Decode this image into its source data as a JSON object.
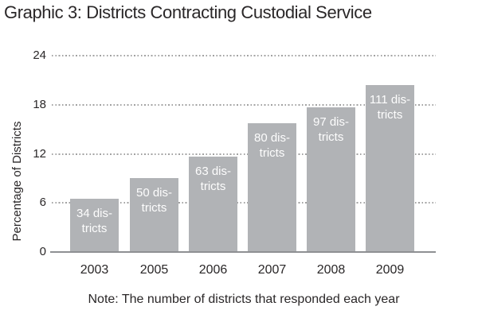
{
  "title": "Graphic 3: Districts Contracting Custodial Service",
  "note": "Note: The number of districts that responded each year",
  "y_axis": {
    "label": "Percentage of Districts",
    "ticks": [
      0,
      6,
      12,
      18,
      24
    ]
  },
  "chart_data": {
    "type": "bar",
    "title": "Graphic 3: Districts Contracting Custodial Service",
    "categories": [
      "2003",
      "2005",
      "2006",
      "2007",
      "2008",
      "2009"
    ],
    "values": [
      6.5,
      9.0,
      11.7,
      15.7,
      17.7,
      20.4
    ],
    "bar_labels": [
      [
        "34 dis-",
        "tricts"
      ],
      [
        "50 dis-",
        "tricts"
      ],
      [
        "63 dis-",
        "tricts"
      ],
      [
        "80 dis-",
        "tricts"
      ],
      [
        "97 dis-",
        "tricts"
      ],
      [
        "111 dis-",
        "tricts"
      ]
    ],
    "xlabel": "",
    "ylabel": "Percentage of Districts",
    "ylim": [
      0,
      24
    ],
    "yticks": [
      0,
      6,
      12,
      18,
      24
    ],
    "grid": "horizontal dotted lines at 6, 12, 18, 24",
    "legend_position": "none",
    "note": "Note: The number of districts that responded each year"
  },
  "colors": {
    "bar": "#b1b3b6",
    "bar_label_text": "#fdfdfd",
    "axis_line": "#8e9093",
    "gridline": "#a2a2a2",
    "text": "#2a2728",
    "background": "#ffffff"
  }
}
